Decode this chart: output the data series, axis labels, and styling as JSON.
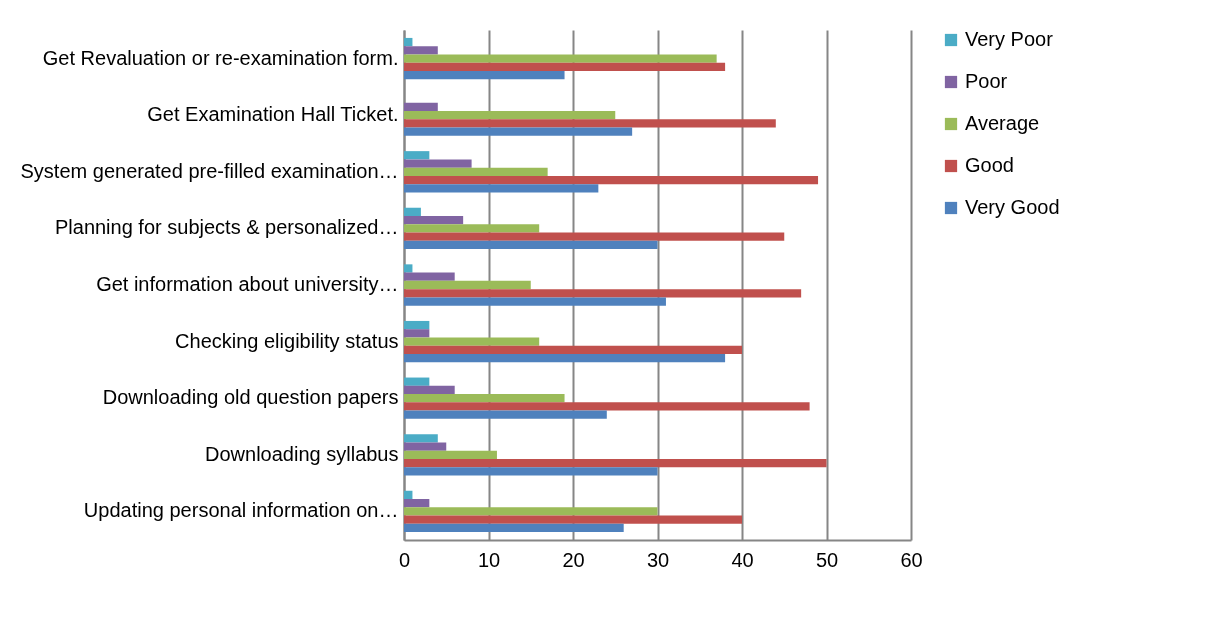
{
  "chart_data": {
    "type": "bar",
    "orientation": "horizontal",
    "categories": [
      "Get Revaluation or re-examination form.",
      "Get Examination Hall Ticket.",
      "System generated pre-filled examination…",
      "Planning for subjects & personalized…",
      "Get  information  about university…",
      "Checking eligibility status",
      "Downloading old question papers",
      "Downloading syllabus",
      "Updating personal information on…"
    ],
    "series": [
      {
        "name": "Very Poor",
        "color": "#4bacc6",
        "values": [
          1,
          0,
          3,
          2,
          1,
          3,
          3,
          4,
          1
        ]
      },
      {
        "name": "Poor",
        "color": "#8064a2",
        "values": [
          4,
          4,
          8,
          7,
          6,
          3,
          6,
          5,
          3
        ]
      },
      {
        "name": "Average",
        "color": "#9bbb59",
        "values": [
          37,
          25,
          17,
          16,
          15,
          16,
          19,
          11,
          30
        ]
      },
      {
        "name": "Good",
        "color": "#c0504d",
        "values": [
          38,
          44,
          49,
          45,
          47,
          40,
          48,
          50,
          40
        ]
      },
      {
        "name": "Very Good",
        "color": "#4f81bd",
        "values": [
          19,
          27,
          23,
          30,
          31,
          38,
          24,
          30,
          26
        ]
      }
    ],
    "xlim": [
      0,
      60
    ],
    "xticks": [
      0,
      10,
      20,
      30,
      40,
      50,
      60
    ],
    "grid": "x",
    "legend": "right"
  }
}
